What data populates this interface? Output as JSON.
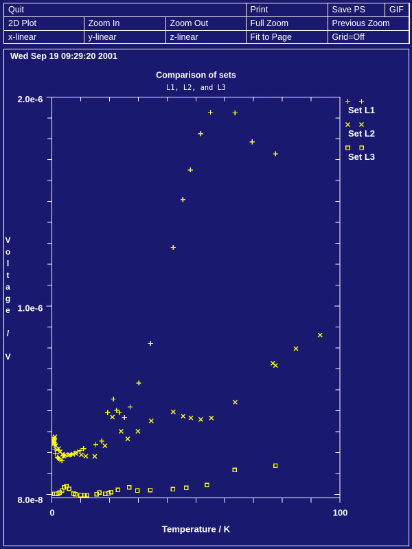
{
  "window": {
    "background": "#191970",
    "foreground": "#ffffff",
    "marker_color": "#ffff00"
  },
  "menu": {
    "rows": [
      {
        "cells": [
          {
            "label": "Quit"
          },
          {
            "label": "Print"
          },
          {
            "label": "Save PS"
          },
          {
            "label": "GIF"
          }
        ]
      },
      {
        "cells": [
          {
            "label": "2D Plot"
          },
          {
            "label": "Zoom In"
          },
          {
            "label": "Zoom Out"
          },
          {
            "label": "Full Zoom"
          },
          {
            "label": "Previous Zoom"
          }
        ]
      },
      {
        "cells": [
          {
            "label": "x-linear"
          },
          {
            "label": "y-linear"
          },
          {
            "label": "z-linear"
          },
          {
            "label": "Fit to Page"
          },
          {
            "label": "Grid=Off"
          }
        ]
      }
    ]
  },
  "status": {
    "datetime": "Wed Sep 19 09:29:20 2001"
  },
  "chart_data": {
    "type": "scatter",
    "title": "Comparison of sets",
    "subtitle": "L1, L2, and L3",
    "xlabel": "Temperature / K",
    "ylabel": "Voltage / V",
    "xlim": [
      0,
      100
    ],
    "ylim": [
      6.2e-08,
      2e-06
    ],
    "x_ticks": {
      "values": [
        0,
        10,
        20,
        30,
        40,
        50,
        60,
        70,
        80,
        90,
        100
      ],
      "labels": [
        {
          "value": 0,
          "text": "0"
        },
        {
          "value": 100,
          "text": "100"
        }
      ]
    },
    "y_ticks": {
      "top_value": 2e-06,
      "bottom_value": 8e-08,
      "count": 20,
      "labels": [
        {
          "index": 0,
          "text": "2.0e-6"
        },
        {
          "index": 10,
          "text": "1.0e-6"
        },
        {
          "index": 19,
          "text": "8.0e-8"
        }
      ]
    },
    "legend": {
      "position": "top-right",
      "entries": [
        {
          "name": "Set L1",
          "marker": "plus"
        },
        {
          "name": "Set L2",
          "marker": "cross"
        },
        {
          "name": "Set L3",
          "marker": "square"
        }
      ]
    },
    "grid": false,
    "series": [
      {
        "name": "Set L1",
        "marker": "plus",
        "color": "#ffff00",
        "points": [
          [
            0.72,
            3.5291e-07
          ],
          [
            0.83,
            3.4462e-07
          ],
          [
            0.72,
            3.3633e-07
          ],
          [
            0.83,
            3.2804e-07
          ],
          [
            0.95,
            3.1975e-07
          ],
          [
            1.07,
            2.982e-07
          ],
          [
            1.19,
            2.783e-07
          ],
          [
            1.95,
            2.5907e-07
          ],
          [
            2.34,
            2.5244e-07
          ],
          [
            2.81,
            2.468e-07
          ],
          [
            3.53,
            2.4249e-07
          ],
          [
            4.1,
            2.657e-07
          ],
          [
            6.72,
            2.7233e-07
          ],
          [
            7.99,
            2.7996e-07
          ],
          [
            8.94,
            2.856e-07
          ],
          [
            9.89,
            2.9156e-07
          ],
          [
            11.01,
            3.0052e-07
          ],
          [
            15.26,
            3.2041e-07
          ],
          [
            17.33,
            3.3733e-07
          ],
          [
            19.38,
            4.7461e-07
          ],
          [
            21.36,
            5.4027e-07
          ],
          [
            22.5,
            4.8589e-07
          ],
          [
            23.43,
            4.7395e-07
          ],
          [
            25.22,
            4.5074e-07
          ],
          [
            27.18,
            5.0213e-07
          ],
          [
            30.18,
            6.1787e-07
          ],
          [
            34.26,
            8.0887e-07
          ],
          [
            42.12,
            1.27312e-06
          ],
          [
            45.51,
            1.50425e-06
          ],
          [
            48.08,
            1.6475e-06
          ],
          [
            51.68,
            1.82259e-06
          ],
          [
            55.07,
            1.92638e-06
          ],
          [
            63.6,
            1.92307e-06
          ],
          [
            69.56,
            1.78313e-06
          ],
          [
            77.69,
            1.72543e-06
          ]
        ]
      },
      {
        "name": "Set L2",
        "marker": "cross",
        "color": "#ffff00",
        "points": [
          [
            1.07,
            3.5789e-07
          ],
          [
            0.83,
            3.4794e-07
          ],
          [
            0.72,
            3.3965e-07
          ],
          [
            0.83,
            3.3136e-07
          ],
          [
            0.95,
            3.2307e-07
          ],
          [
            1.31,
            3.1478e-07
          ],
          [
            1.79,
            2.9654e-07
          ],
          [
            2.34,
            3.0085e-07
          ],
          [
            2.91,
            2.856e-07
          ],
          [
            3.69,
            2.7333e-07
          ],
          [
            4.17,
            2.6504e-07
          ],
          [
            4.72,
            2.7101e-07
          ],
          [
            5.77,
            2.6902e-07
          ],
          [
            6.2,
            2.7167e-07
          ],
          [
            7.32,
            2.7266e-07
          ],
          [
            8.3,
            2.7764e-07
          ],
          [
            10.25,
            2.7101e-07
          ],
          [
            11.8,
            2.6437e-07
          ],
          [
            14.9,
            2.6338e-07
          ],
          [
            18.45,
            3.1478e-07
          ],
          [
            21.03,
            4.5306e-07
          ],
          [
            24.05,
            3.8441e-07
          ],
          [
            26.34,
            3.4794e-07
          ],
          [
            29.89,
            3.8441e-07
          ],
          [
            34.52,
            4.3515e-07
          ],
          [
            42.15,
            4.7826e-07
          ],
          [
            45.58,
            4.5737e-07
          ],
          [
            48.27,
            4.4908e-07
          ],
          [
            51.68,
            4.4178e-07
          ],
          [
            55.38,
            4.4875e-07
          ],
          [
            63.65,
            5.2502e-07
          ],
          [
            76.73,
            7.1304e-07
          ],
          [
            77.66,
            7.0242e-07
          ],
          [
            84.74,
            7.84e-07
          ],
          [
            93.13,
            8.4933e-07
          ]
        ]
      },
      {
        "name": "Set L3",
        "marker": "square",
        "color": "#ffff00",
        "points": [
          [
            0.95,
            8.265e-08
          ],
          [
            1.55,
            8.265e-08
          ],
          [
            2.15,
            8.431e-08
          ],
          [
            2.74,
            8.928e-08
          ],
          [
            3.53,
            9.857e-08
          ],
          [
            4.24,
            1.125e-07
          ],
          [
            5.05,
            1.1979e-07
          ],
          [
            6.03,
            1.0686e-07
          ],
          [
            7.51,
            8.332e-08
          ],
          [
            8.22,
            7.934e-08
          ],
          [
            10.01,
            7.536e-08
          ],
          [
            11.39,
            7.536e-08
          ],
          [
            12.21,
            7.536e-08
          ],
          [
            15.57,
            8.099e-08
          ],
          [
            16.5,
            8.862e-08
          ],
          [
            18.55,
            8.199e-08
          ],
          [
            19.74,
            8.497e-08
          ],
          [
            20.55,
            9.028e-08
          ],
          [
            23.0,
            1.0155e-07
          ],
          [
            26.82,
            1.1349e-07
          ],
          [
            29.68,
            9.758e-08
          ],
          [
            34.16,
            1.0023e-07
          ],
          [
            42.07,
            1.0421e-07
          ],
          [
            46.65,
            1.1084e-07
          ],
          [
            53.87,
            1.2477e-07
          ],
          [
            63.46,
            1.9706e-07
          ],
          [
            77.71,
            2.1861e-07
          ]
        ]
      }
    ]
  }
}
